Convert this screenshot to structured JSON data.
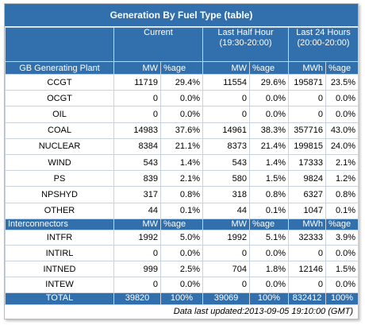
{
  "title": "Generation By Fuel Type (table)",
  "columns": {
    "plant": "GB Generating Plant",
    "current": "Current",
    "half_hour_line1": "Last Half Hour",
    "half_hour_line2": "(19:30-20:00)",
    "day_line1": "Last 24 Hours",
    "day_line2": "(20:00-20:00)",
    "mw": "MW",
    "pct": "%age",
    "mwh": "MWh"
  },
  "fuels": [
    {
      "name": "CCGT",
      "cur_mw": "11719",
      "cur_pct": "29.4%",
      "hh_mw": "11554",
      "hh_pct": "29.6%",
      "day_mwh": "195871",
      "day_pct": "23.5%"
    },
    {
      "name": "OCGT",
      "cur_mw": "0",
      "cur_pct": "0.0%",
      "hh_mw": "0",
      "hh_pct": "0.0%",
      "day_mwh": "0",
      "day_pct": "0.0%"
    },
    {
      "name": "OIL",
      "cur_mw": "0",
      "cur_pct": "0.0%",
      "hh_mw": "0",
      "hh_pct": "0.0%",
      "day_mwh": "0",
      "day_pct": "0.0%"
    },
    {
      "name": "COAL",
      "cur_mw": "14983",
      "cur_pct": "37.6%",
      "hh_mw": "14961",
      "hh_pct": "38.3%",
      "day_mwh": "357716",
      "day_pct": "43.0%"
    },
    {
      "name": "NUCLEAR",
      "cur_mw": "8384",
      "cur_pct": "21.1%",
      "hh_mw": "8373",
      "hh_pct": "21.4%",
      "day_mwh": "199815",
      "day_pct": "24.0%"
    },
    {
      "name": "WIND",
      "cur_mw": "543",
      "cur_pct": "1.4%",
      "hh_mw": "543",
      "hh_pct": "1.4%",
      "day_mwh": "17333",
      "day_pct": "2.1%"
    },
    {
      "name": "PS",
      "cur_mw": "839",
      "cur_pct": "2.1%",
      "hh_mw": "580",
      "hh_pct": "1.5%",
      "day_mwh": "9824",
      "day_pct": "1.2%"
    },
    {
      "name": "NPSHYD",
      "cur_mw": "317",
      "cur_pct": "0.8%",
      "hh_mw": "318",
      "hh_pct": "0.8%",
      "day_mwh": "6327",
      "day_pct": "0.8%"
    },
    {
      "name": "OTHER",
      "cur_mw": "44",
      "cur_pct": "0.1%",
      "hh_mw": "44",
      "hh_pct": "0.1%",
      "day_mwh": "1047",
      "day_pct": "0.1%"
    }
  ],
  "interconnectors_label": "Interconnectors",
  "interconnectors": [
    {
      "name": "INTFR",
      "cur_mw": "1992",
      "cur_pct": "5.0%",
      "hh_mw": "1992",
      "hh_pct": "5.1%",
      "day_mwh": "32333",
      "day_pct": "3.9%"
    },
    {
      "name": "INTIRL",
      "cur_mw": "0",
      "cur_pct": "0.0%",
      "hh_mw": "0",
      "hh_pct": "0.0%",
      "day_mwh": "0",
      "day_pct": "0.0%"
    },
    {
      "name": "INTNED",
      "cur_mw": "999",
      "cur_pct": "2.5%",
      "hh_mw": "704",
      "hh_pct": "1.8%",
      "day_mwh": "12146",
      "day_pct": "1.5%"
    },
    {
      "name": "INTEW",
      "cur_mw": "0",
      "cur_pct": "0.0%",
      "hh_mw": "0",
      "hh_pct": "0.0%",
      "day_mwh": "0",
      "day_pct": "0.0%"
    }
  ],
  "total": {
    "name": "TOTAL",
    "cur_mw": "39820",
    "cur_pct": "100%",
    "hh_mw": "39069",
    "hh_pct": "100%",
    "day_mwh": "832412",
    "day_pct": "100%"
  },
  "footer": "Data last updated:2013-09-05 19:10:00 (GMT)",
  "colors": {
    "header_bg": "#326fad",
    "header_text": "#ffffff",
    "grid": "#c9d3df"
  }
}
